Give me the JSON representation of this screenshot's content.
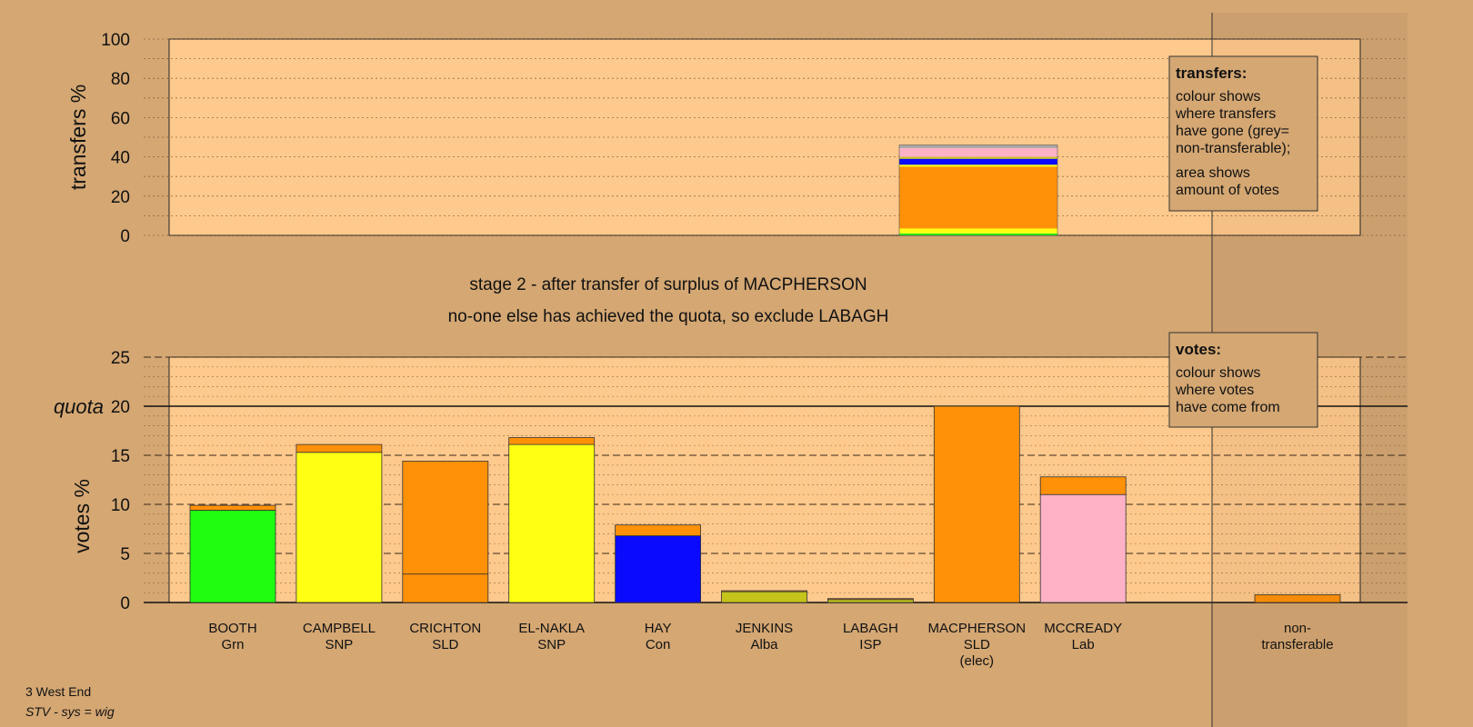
{
  "colors": {
    "background": "#d4a773",
    "plot_bg": "#fec98c",
    "parties": {
      "Grn": "#1ffc10",
      "SNP": "#ffff14",
      "SLD": "#ff9108",
      "Con": "#0a0afc",
      "Alba": "#c4c41a",
      "ISP": "#c4c41a",
      "Lab": "#ffb2c6",
      "nontransferable": "#a8a8a8"
    }
  },
  "chart_data": [
    {
      "type": "bar",
      "ylabel": "transfers %",
      "ylim": [
        0,
        100
      ],
      "yticks": [
        0,
        20,
        40,
        60,
        80,
        100
      ],
      "legend": {
        "placement": "top-right",
        "title": "transfers:",
        "lines1": [
          "colour shows",
          "where transfers",
          "have gone (grey=",
          "non-transferable);"
        ],
        "lines2": [
          "area shows",
          "amount of votes"
        ]
      },
      "categories": [
        "MACPHERSON"
      ],
      "stack": [
        {
          "to": "BOOTH",
          "party": "Grn",
          "value": 1.0
        },
        {
          "to": "CAMPBELL",
          "party": "SNP",
          "value": 2.5
        },
        {
          "to": "CRICHTON",
          "party": "SLD",
          "value": 31.5
        },
        {
          "to": "EL-NAKLA",
          "party": "SNP",
          "value": 1.0
        },
        {
          "to": "HAY",
          "party": "Con",
          "value": 3.0
        },
        {
          "to": "JENKINS",
          "party": "Alba",
          "value": 0.5
        },
        {
          "to": "LABAGH",
          "party": "ISP",
          "value": 0.5
        },
        {
          "to": "MCCREADY",
          "party": "Lab",
          "value": 4.5
        },
        {
          "to": "non-transferable",
          "party": "nontransferable",
          "value": 1.5
        }
      ]
    },
    {
      "type": "bar",
      "ylabel": "votes %",
      "ylim": [
        0,
        25
      ],
      "yticks": [
        0,
        5,
        10,
        15,
        20,
        25
      ],
      "quota": 20,
      "quota_label": "quota",
      "legend": {
        "placement": "top-right",
        "title": "votes:",
        "lines": [
          "colour shows",
          "where votes",
          "have come from"
        ]
      },
      "candidates": [
        {
          "name": "BOOTH",
          "party": "Grn",
          "elected": "",
          "segments": [
            {
              "party": "Grn",
              "value": 9.4
            },
            {
              "party": "SLD",
              "value": 0.5
            }
          ]
        },
        {
          "name": "CAMPBELL",
          "party": "SNP",
          "elected": "",
          "segments": [
            {
              "party": "SNP",
              "value": 15.3
            },
            {
              "party": "SLD",
              "value": 0.8
            }
          ]
        },
        {
          "name": "CRICHTON",
          "party": "SLD",
          "elected": "",
          "segments": [
            {
              "party": "SLD",
              "value": 2.9
            },
            {
              "party": "SLD",
              "value": 11.5
            }
          ]
        },
        {
          "name": "EL-NAKLA",
          "party": "SNP",
          "elected": "",
          "segments": [
            {
              "party": "SNP",
              "value": 16.1
            },
            {
              "party": "SLD",
              "value": 0.7
            }
          ]
        },
        {
          "name": "HAY",
          "party": "Con",
          "elected": "",
          "segments": [
            {
              "party": "Con",
              "value": 6.8
            },
            {
              "party": "SLD",
              "value": 1.1
            }
          ]
        },
        {
          "name": "JENKINS",
          "party": "Alba",
          "elected": "",
          "segments": [
            {
              "party": "Alba",
              "value": 1.1
            },
            {
              "party": "SLD",
              "value": 0.1
            }
          ]
        },
        {
          "name": "LABAGH",
          "party": "ISP",
          "elected": "",
          "segments": [
            {
              "party": "ISP",
              "value": 0.3
            },
            {
              "party": "SLD",
              "value": 0.1
            }
          ]
        },
        {
          "name": "MACPHERSON",
          "party": "SLD",
          "elected": "(elec)",
          "segments": [
            {
              "party": "SLD",
              "value": 20.0
            }
          ]
        },
        {
          "name": "MCCREADY",
          "party": "Lab",
          "elected": "",
          "segments": [
            {
              "party": "Lab",
              "value": 11.0
            },
            {
              "party": "SLD",
              "value": 1.8
            }
          ]
        }
      ],
      "nontransferable": {
        "label1": "non-",
        "label2": "transferable",
        "value": 0.8,
        "party": "SLD"
      }
    }
  ],
  "titles": {
    "line1": "stage 2 - after transfer of surplus of MACPHERSON",
    "line2": "no-one else has achieved the quota, so exclude LABAGH"
  },
  "footer": {
    "ward": "3 West End",
    "system": "STV - sys = wig"
  }
}
